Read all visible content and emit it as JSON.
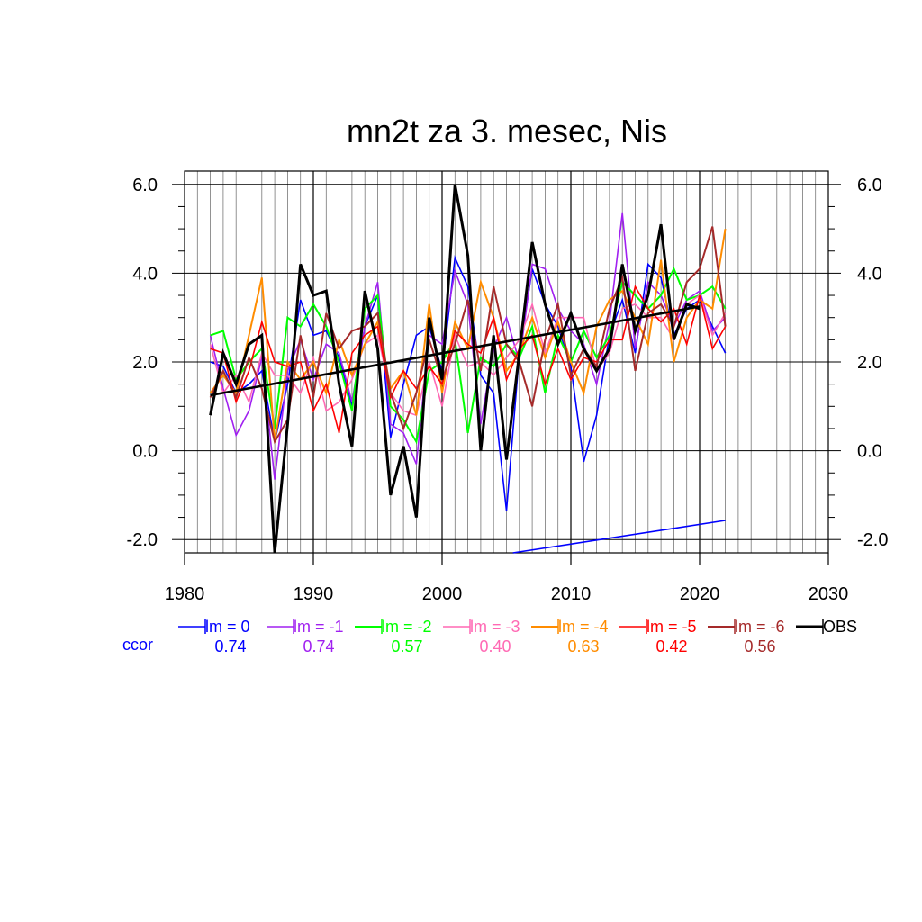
{
  "chart_data": {
    "type": "line",
    "title": "mn2t za 3. mesec, Nis",
    "xlim": [
      1980,
      2030
    ],
    "ylim": [
      -2.3,
      6.3
    ],
    "x_ticks": [
      1980,
      1990,
      2000,
      2010,
      2020,
      2030
    ],
    "x_tick_labels": [
      "1980",
      "1990",
      "2000",
      "2010",
      "2020",
      "2030"
    ],
    "y_ticks": [
      -2,
      0,
      2,
      4,
      6
    ],
    "y_tick_labels": [
      "-2.0",
      "0.0",
      "2.0",
      "4.0",
      "6.0"
    ],
    "grid": true,
    "legend_position": "below",
    "ccor_label": "ccor",
    "x": [
      1982,
      1983,
      1984,
      1985,
      1986,
      1987,
      1988,
      1989,
      1990,
      1991,
      1992,
      1993,
      1994,
      1995,
      1996,
      1997,
      1998,
      1999,
      2000,
      2001,
      2002,
      2003,
      2004,
      2005,
      2006,
      2007,
      2008,
      2009,
      2010,
      2011,
      2012,
      2013,
      2014,
      2015,
      2016,
      2017,
      2018,
      2019,
      2020,
      2021,
      2022
    ],
    "series": [
      {
        "name": "lm = 0",
        "color": "#0000ff",
        "width": 1.6,
        "ccor": "0.74",
        "values": [
          2.0,
          1.9,
          1.3,
          1.5,
          1.8,
          0.2,
          1.5,
          3.4,
          2.6,
          2.7,
          2.1,
          1.0,
          2.8,
          3.5,
          0.3,
          1.5,
          2.6,
          2.8,
          1.8,
          4.35,
          3.7,
          1.7,
          1.3,
          -1.35,
          2.2,
          4.1,
          3.3,
          2.8,
          1.9,
          -0.25,
          0.8,
          2.6,
          3.4,
          2.2,
          4.2,
          3.9,
          2.6,
          3.2,
          3.4,
          2.8,
          2.2
        ]
      },
      {
        "name": "lm = -1",
        "color": "#a020f0",
        "width": 1.6,
        "ccor": "0.74",
        "values": [
          2.6,
          1.4,
          0.35,
          0.9,
          2.1,
          -0.65,
          1.8,
          2.5,
          1.6,
          2.4,
          2.2,
          1.1,
          2.8,
          3.8,
          0.6,
          0.4,
          -0.3,
          2.6,
          2.4,
          4.05,
          3.3,
          0.6,
          2.3,
          3.0,
          2.0,
          4.2,
          4.1,
          3.2,
          2.7,
          2.4,
          1.5,
          2.9,
          5.35,
          2.3,
          3.8,
          3.5,
          2.8,
          3.4,
          3.6,
          2.7,
          3.0
        ]
      },
      {
        "name": "lm = -2",
        "color": "#00ff00",
        "width": 2.0,
        "ccor": "0.57",
        "values": [
          2.6,
          2.7,
          1.6,
          2.0,
          2.3,
          0.5,
          3.0,
          2.8,
          3.3,
          2.8,
          2.0,
          0.9,
          3.2,
          3.5,
          1.0,
          0.7,
          0.2,
          1.8,
          2.0,
          2.5,
          0.4,
          2.1,
          1.9,
          2.4,
          2.1,
          2.8,
          1.3,
          2.6,
          2.0,
          2.7,
          2.1,
          2.6,
          3.8,
          3.5,
          3.2,
          3.5,
          4.1,
          3.4,
          3.5,
          3.7,
          3.2
        ]
      },
      {
        "name": "lm = -3",
        "color": "#ff69b4",
        "width": 1.6,
        "ccor": "0.40",
        "values": [
          2.4,
          1.3,
          1.7,
          1.1,
          2.2,
          1.7,
          1.7,
          1.3,
          2.1,
          0.9,
          1.1,
          1.6,
          2.4,
          2.6,
          1.3,
          0.9,
          0.8,
          2.0,
          1.0,
          2.6,
          1.9,
          2.0,
          1.7,
          2.1,
          2.5,
          3.3,
          2.2,
          3.0,
          3.0,
          3.0,
          1.8,
          2.2,
          3.2,
          3.3,
          3.0,
          3.0,
          2.5,
          3.3,
          3.5,
          2.6,
          3.1
        ]
      },
      {
        "name": "lm = -4",
        "color": "#ff8c00",
        "width": 2.0,
        "ccor": "0.63",
        "values": [
          1.3,
          1.7,
          1.3,
          2.6,
          3.9,
          0.2,
          2.0,
          1.6,
          2.0,
          1.3,
          2.5,
          1.7,
          2.4,
          2.9,
          1.4,
          1.8,
          0.8,
          3.3,
          1.3,
          2.9,
          2.3,
          3.8,
          3.0,
          1.8,
          2.2,
          3.0,
          2.1,
          2.9,
          2.0,
          1.3,
          2.8,
          3.4,
          3.6,
          3.0,
          2.4,
          4.3,
          2.0,
          3.0,
          3.4,
          3.2,
          5.0
        ]
      },
      {
        "name": "lm = -5",
        "color": "#ff0000",
        "width": 1.6,
        "ccor": "0.42",
        "values": [
          2.3,
          2.2,
          1.1,
          1.8,
          2.9,
          2.0,
          1.9,
          2.0,
          0.9,
          1.5,
          0.4,
          2.2,
          2.6,
          2.8,
          1.2,
          1.8,
          1.4,
          1.9,
          1.5,
          2.7,
          2.4,
          2.2,
          3.0,
          1.6,
          2.3,
          2.6,
          1.5,
          2.3,
          1.6,
          2.1,
          2.0,
          2.5,
          2.5,
          3.7,
          3.2,
          2.9,
          3.2,
          2.4,
          3.5,
          2.3,
          2.8
        ]
      },
      {
        "name": "lm = -6",
        "color": "#a52a2a",
        "width": 2.0,
        "ccor": "0.56",
        "values": [
          1.2,
          1.8,
          1.2,
          2.1,
          1.4,
          0.2,
          0.7,
          2.6,
          1.2,
          3.1,
          2.3,
          2.7,
          2.8,
          3.1,
          1.3,
          0.5,
          1.3,
          2.5,
          1.6,
          2.4,
          3.4,
          1.8,
          3.7,
          2.4,
          2.0,
          1.0,
          2.5,
          3.3,
          1.7,
          2.3,
          1.9,
          3.2,
          3.9,
          1.8,
          3.1,
          3.3,
          2.8,
          3.8,
          4.1,
          5.05,
          2.8
        ]
      },
      {
        "name": "OBS",
        "color": "#000000",
        "width": 3.0,
        "ccor": "",
        "values": [
          0.8,
          2.2,
          1.5,
          2.4,
          2.6,
          -2.3,
          0.6,
          4.2,
          3.5,
          3.6,
          1.5,
          0.1,
          3.6,
          2.3,
          -1.0,
          0.1,
          -1.5,
          3.0,
          1.6,
          6.0,
          4.4,
          0.0,
          2.6,
          -0.2,
          2.2,
          4.7,
          3.3,
          2.4,
          3.1,
          2.3,
          1.8,
          2.3,
          4.2,
          2.7,
          3.5,
          5.1,
          2.5,
          3.3,
          3.2,
          null,
          null
        ]
      }
    ],
    "trend_lines": [
      {
        "color": "#000000",
        "x": [
          1982,
          2020
        ],
        "y": [
          1.25,
          3.25
        ]
      },
      {
        "color": "#0000ff",
        "x": [
          2005.5,
          2022
        ],
        "y": [
          -2.3,
          -1.57
        ]
      }
    ]
  }
}
